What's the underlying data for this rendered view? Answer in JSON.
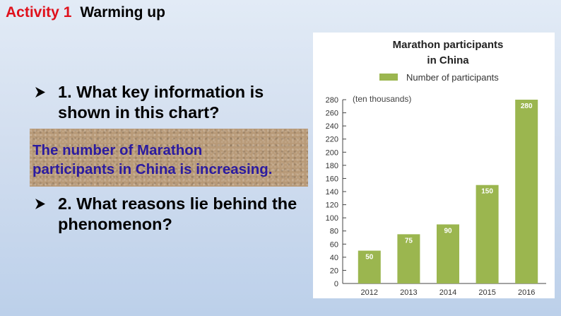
{
  "header": {
    "activity_label": "Activity 1",
    "activity_title": "Warming up"
  },
  "questions": [
    {
      "text": "1. What key information is shown in this chart?"
    },
    {
      "text": "2. What reasons lie behind the phenomenon?"
    }
  ],
  "answer": {
    "line1": "The number of Marathon",
    "line2": "participants in China is increasing."
  },
  "colors": {
    "bar": "#9bb64f",
    "bar_label": "#ffffff",
    "answer_text": "#2b1ba0",
    "activity_label": "#e0101b"
  },
  "chart_data": {
    "type": "bar",
    "title_line1": "Marathon participants",
    "title_line2": "in China",
    "legend": "Number of participants",
    "unit": "(ten thousands)",
    "categories": [
      "2012",
      "2013",
      "2014",
      "2015",
      "2016"
    ],
    "values": [
      50,
      75,
      90,
      150,
      280
    ],
    "value_labels": [
      "50",
      "75",
      "90",
      "150",
      "280"
    ],
    "yticks": [
      "0",
      "20",
      "40",
      "60",
      "80",
      "100",
      "120",
      "140",
      "160",
      "180",
      "200",
      "220",
      "240",
      "260",
      "280"
    ],
    "ylim": [
      0,
      280
    ],
    "grid": false,
    "legend_position": "top"
  }
}
